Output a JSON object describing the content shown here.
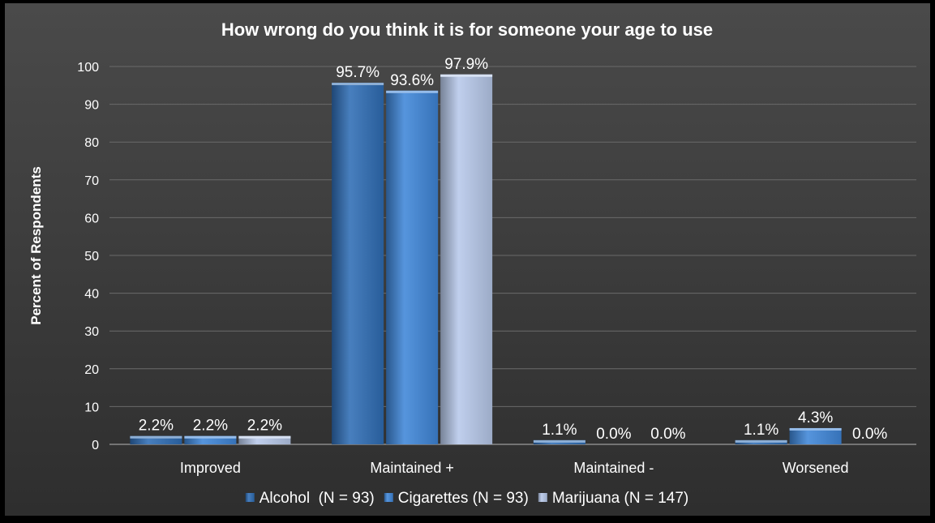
{
  "chart_data": {
    "type": "bar",
    "title": "How wrong do you think it is for someone your age to use",
    "xlabel": "",
    "ylabel": "Percent of Respondents",
    "ylim": [
      0,
      100
    ],
    "yticks": [
      0,
      10,
      20,
      30,
      40,
      50,
      60,
      70,
      80,
      90,
      100
    ],
    "categories": [
      "Improved",
      "Maintained +",
      "Maintained -",
      "Worsened"
    ],
    "series": [
      {
        "name": "Alcohol  (N = 93)",
        "values": [
          2.2,
          95.7,
          1.1,
          1.1
        ],
        "labels": [
          "2.2%",
          "95.7%",
          "1.1%",
          "1.1%"
        ],
        "color": "#2f6db5"
      },
      {
        "name": "Cigarettes (N = 93)",
        "values": [
          2.2,
          93.6,
          0.0,
          4.3
        ],
        "labels": [
          "2.2%",
          "93.6%",
          "0.0%",
          "4.3%"
        ],
        "color": "#3f86d8"
      },
      {
        "name": "Marijuana (N = 147)",
        "values": [
          2.2,
          97.9,
          0.0,
          0.0
        ],
        "labels": [
          "2.2%",
          "97.9%",
          "0.0%",
          "0.0%"
        ],
        "color": "#b7c9ea"
      }
    ],
    "grid": true,
    "legend": "bottom",
    "colors": {
      "background": "#000000",
      "plot_area": "#3c3c3c",
      "gridline": "#6a6a6a",
      "text": "#ffffff"
    }
  }
}
